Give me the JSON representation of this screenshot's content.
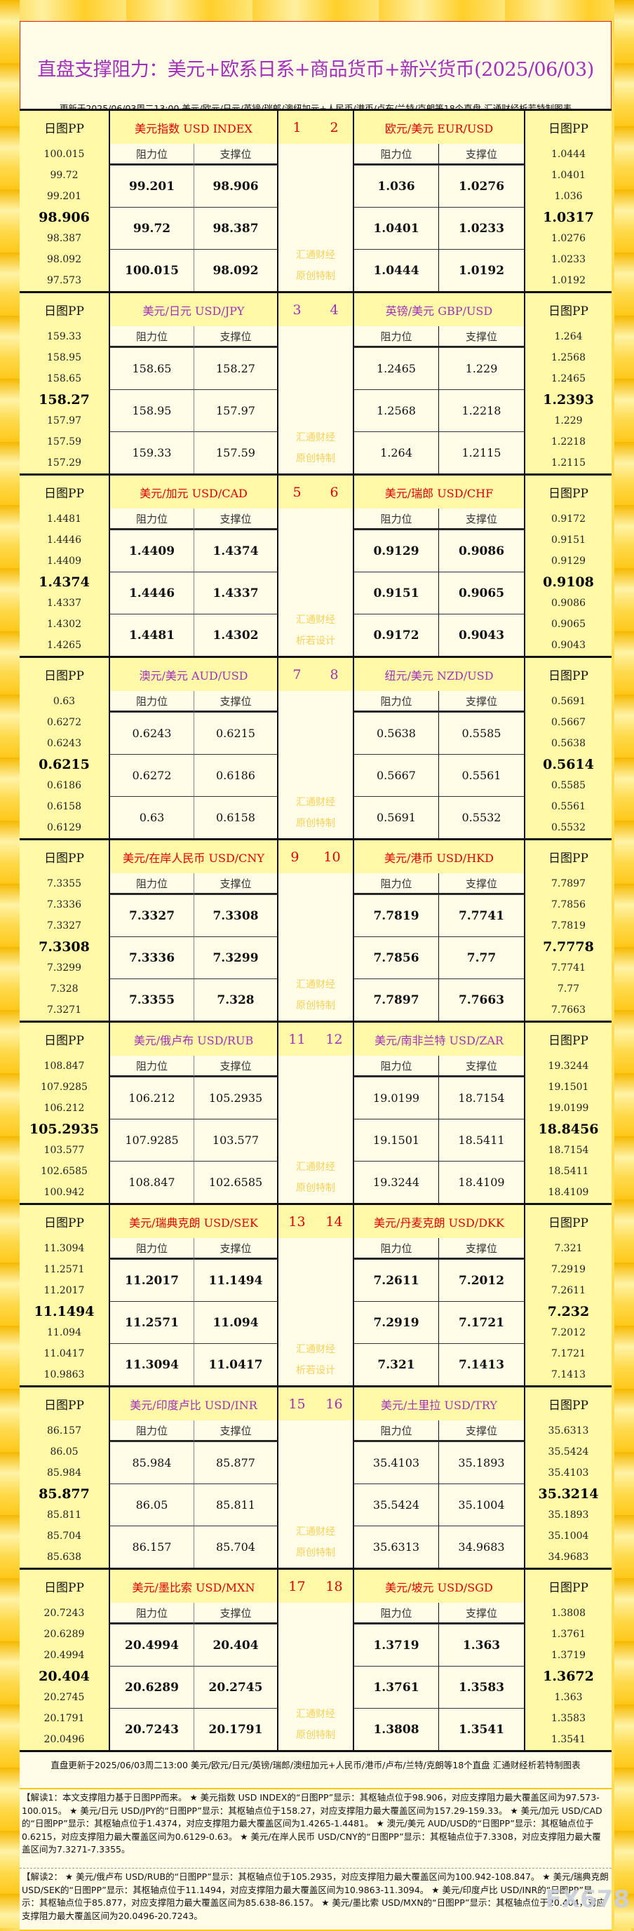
{
  "header": {
    "title": "直盘支撑阻力：美元+欧系日系+商品货币+新兴货币(2025/06/03)",
    "subtitle": "更新于2025/06/03周二13:00 美元/欧元/日元/英镑/瑞郎/澳纽加元+人民币/港币/卢布/兰特/克朗等18个直盘 汇通财经析若特制图表"
  },
  "labels": {
    "pp": "日图PP",
    "resistance": "阻力位",
    "support": "支撑位",
    "wm_line1": "汇通财经"
  },
  "colors": {
    "red_title": "#e00000",
    "purple_title": "#a230bd"
  },
  "sections": [
    {
      "color": "red",
      "wm2": "原创特制",
      "num_left": "1",
      "num_right": "2",
      "left": {
        "title": "美元指数 USD INDEX",
        "pp": [
          "100.015",
          "99.72",
          "99.201",
          "98.906",
          "98.387",
          "98.092",
          "97.573"
        ],
        "rows": [
          [
            "99.201",
            "98.906"
          ],
          [
            "99.72",
            "98.387"
          ],
          [
            "100.015",
            "98.092"
          ]
        ]
      },
      "right": {
        "title": "欧元/美元 EUR/USD",
        "pp": [
          "1.0444",
          "1.0401",
          "1.036",
          "1.0317",
          "1.0276",
          "1.0233",
          "1.0192"
        ],
        "rows": [
          [
            "1.036",
            "1.0276"
          ],
          [
            "1.0401",
            "1.0233"
          ],
          [
            "1.0444",
            "1.0192"
          ]
        ]
      }
    },
    {
      "color": "purple",
      "wm2": "原创特制",
      "num_left": "3",
      "num_right": "4",
      "left": {
        "title": "美元/日元 USD/JPY",
        "pp": [
          "159.33",
          "158.95",
          "158.65",
          "158.27",
          "157.97",
          "157.59",
          "157.29"
        ],
        "rows": [
          [
            "158.65",
            "158.27"
          ],
          [
            "158.95",
            "157.97"
          ],
          [
            "159.33",
            "157.59"
          ]
        ]
      },
      "right": {
        "title": "英镑/美元 GBP/USD",
        "pp": [
          "1.264",
          "1.2568",
          "1.2465",
          "1.2393",
          "1.229",
          "1.2218",
          "1.2115"
        ],
        "rows": [
          [
            "1.2465",
            "1.229"
          ],
          [
            "1.2568",
            "1.2218"
          ],
          [
            "1.264",
            "1.2115"
          ]
        ]
      }
    },
    {
      "color": "red",
      "wm2": "析若设计",
      "num_left": "5",
      "num_right": "6",
      "left": {
        "title": "美元/加元 USD/CAD",
        "pp": [
          "1.4481",
          "1.4446",
          "1.4409",
          "1.4374",
          "1.4337",
          "1.4302",
          "1.4265"
        ],
        "rows": [
          [
            "1.4409",
            "1.4374"
          ],
          [
            "1.4446",
            "1.4337"
          ],
          [
            "1.4481",
            "1.4302"
          ]
        ]
      },
      "right": {
        "title": "美元/瑞郎 USD/CHF",
        "pp": [
          "0.9172",
          "0.9151",
          "0.9129",
          "0.9108",
          "0.9086",
          "0.9065",
          "0.9043"
        ],
        "rows": [
          [
            "0.9129",
            "0.9086"
          ],
          [
            "0.9151",
            "0.9065"
          ],
          [
            "0.9172",
            "0.9043"
          ]
        ]
      }
    },
    {
      "color": "purple",
      "wm2": "原创特制",
      "num_left": "7",
      "num_right": "8",
      "left": {
        "title": "澳元/美元 AUD/USD",
        "pp": [
          "0.63",
          "0.6272",
          "0.6243",
          "0.6215",
          "0.6186",
          "0.6158",
          "0.6129"
        ],
        "rows": [
          [
            "0.6243",
            "0.6215"
          ],
          [
            "0.6272",
            "0.6186"
          ],
          [
            "0.63",
            "0.6158"
          ]
        ]
      },
      "right": {
        "title": "纽元/美元 NZD/USD",
        "pp": [
          "0.5691",
          "0.5667",
          "0.5638",
          "0.5614",
          "0.5585",
          "0.5561",
          "0.5532"
        ],
        "rows": [
          [
            "0.5638",
            "0.5585"
          ],
          [
            "0.5667",
            "0.5561"
          ],
          [
            "0.5691",
            "0.5532"
          ]
        ]
      }
    },
    {
      "color": "red",
      "wm2": "原创特制",
      "num_left": "9",
      "num_right": "10",
      "left": {
        "title": "美元/在岸人民币 USD/CNY",
        "pp": [
          "7.3355",
          "7.3336",
          "7.3327",
          "7.3308",
          "7.3299",
          "7.328",
          "7.3271"
        ],
        "rows": [
          [
            "7.3327",
            "7.3308"
          ],
          [
            "7.3336",
            "7.3299"
          ],
          [
            "7.3355",
            "7.328"
          ]
        ]
      },
      "right": {
        "title": "美元/港币 USD/HKD",
        "pp": [
          "7.7897",
          "7.7856",
          "7.7819",
          "7.7778",
          "7.7741",
          "7.77",
          "7.7663"
        ],
        "rows": [
          [
            "7.7819",
            "7.7741"
          ],
          [
            "7.7856",
            "7.77"
          ],
          [
            "7.7897",
            "7.7663"
          ]
        ]
      }
    },
    {
      "color": "purple",
      "wm2": "原创特制",
      "num_left": "11",
      "num_right": "12",
      "left": {
        "title": "美元/俄卢布 USD/RUB",
        "pp": [
          "108.847",
          "107.9285",
          "106.212",
          "105.2935",
          "103.577",
          "102.6585",
          "100.942"
        ],
        "rows": [
          [
            "106.212",
            "105.2935"
          ],
          [
            "107.9285",
            "103.577"
          ],
          [
            "108.847",
            "102.6585"
          ]
        ]
      },
      "right": {
        "title": "美元/南非兰特 USD/ZAR",
        "pp": [
          "19.3244",
          "19.1501",
          "19.0199",
          "18.8456",
          "18.7154",
          "18.5411",
          "18.4109"
        ],
        "rows": [
          [
            "19.0199",
            "18.7154"
          ],
          [
            "19.1501",
            "18.5411"
          ],
          [
            "19.3244",
            "18.4109"
          ]
        ]
      }
    },
    {
      "color": "red",
      "wm2": "析若设计",
      "num_left": "13",
      "num_right": "14",
      "left": {
        "title": "美元/瑞典克朗 USD/SEK",
        "pp": [
          "11.3094",
          "11.2571",
          "11.2017",
          "11.1494",
          "11.094",
          "11.0417",
          "10.9863"
        ],
        "rows": [
          [
            "11.2017",
            "11.1494"
          ],
          [
            "11.2571",
            "11.094"
          ],
          [
            "11.3094",
            "11.0417"
          ]
        ]
      },
      "right": {
        "title": "美元/丹麦克朗 USD/DKK",
        "pp": [
          "7.321",
          "7.2919",
          "7.2611",
          "7.232",
          "7.2012",
          "7.1721",
          "7.1413"
        ],
        "rows": [
          [
            "7.2611",
            "7.2012"
          ],
          [
            "7.2919",
            "7.1721"
          ],
          [
            "7.321",
            "7.1413"
          ]
        ]
      }
    },
    {
      "color": "purple",
      "wm2": "原创特制",
      "num_left": "15",
      "num_right": "16",
      "left": {
        "title": "美元/印度卢比 USD/INR",
        "pp": [
          "86.157",
          "86.05",
          "85.984",
          "85.877",
          "85.811",
          "85.704",
          "85.638"
        ],
        "rows": [
          [
            "85.984",
            "85.877"
          ],
          [
            "86.05",
            "85.811"
          ],
          [
            "86.157",
            "85.704"
          ]
        ]
      },
      "right": {
        "title": "美元/土里拉 USD/TRY",
        "pp": [
          "35.6313",
          "35.5424",
          "35.4103",
          "35.3214",
          "35.1893",
          "35.1004",
          "34.9683"
        ],
        "rows": [
          [
            "35.4103",
            "35.1893"
          ],
          [
            "35.5424",
            "35.1004"
          ],
          [
            "35.6313",
            "34.9683"
          ]
        ]
      }
    },
    {
      "color": "red",
      "wm2": "原创特制",
      "num_left": "17",
      "num_right": "18",
      "left": {
        "title": "美元/墨比索 USD/MXN",
        "pp": [
          "20.7243",
          "20.6289",
          "20.4994",
          "20.404",
          "20.2745",
          "20.1791",
          "20.0496"
        ],
        "rows": [
          [
            "20.4994",
            "20.404"
          ],
          [
            "20.6289",
            "20.2745"
          ],
          [
            "20.7243",
            "20.1791"
          ]
        ]
      },
      "right": {
        "title": "美元/坡元 USD/SGD",
        "pp": [
          "1.3808",
          "1.3761",
          "1.3719",
          "1.3672",
          "1.363",
          "1.3583",
          "1.3541"
        ],
        "rows": [
          [
            "1.3719",
            "1.363"
          ],
          [
            "1.3761",
            "1.3583"
          ],
          [
            "1.3808",
            "1.3541"
          ]
        ]
      }
    }
  ],
  "footer": {
    "update_note": "直盘更新于2025/06/03周二13:00 美元/欧元/日元/英镑/瑞郎/澳纽加元+人民币/港币/卢布/兰特/克朗等18个直盘 汇通财经析若特制图表",
    "interpretation_1": "【解读1：本文支撑阻力基于日图PP而来。 ★ 美元指数 USD INDEX的“日图PP”显示：其枢轴点位于98.906，对应支撑阻力最大覆盖区间为97.573-100.015。 ★ 美元/日元 USD/JPY的“日图PP”显示：其枢轴点位于158.27，对应支撑阻力最大覆盖区间为157.29-159.33。 ★ 美元/加元 USD/CAD的“日图PP”显示：其枢轴点位于1.4374，对应支撑阻力最大覆盖区间为1.4265-1.4481。 ★ 澳元/美元 AUD/USD的“日图PP”显示：其枢轴点位于0.6215，对应支撑阻力最大覆盖区间为0.6129-0.63。 ★ 美元/在岸人民币 USD/CNY的“日图PP”显示：其枢轴点位于7.3308，对应支撑阻力最大覆盖区间为7.3271-7.3355。",
    "interpretation_2": "【解读2： ★ 美元/俄卢布 USD/RUB的“日图PP”显示：其枢轴点位于105.2935，对应支撑阻力最大覆盖区间为100.942-108.847。 ★ 美元/瑞典克朗 USD/SEK的“日图PP”显示：其枢轴点位于11.1494，对应支撑阻力最大覆盖区间为10.9863-11.3094。 ★ 美元/印度卢比 USD/INR的“日图PP”显示：其枢轴点位于85.877，对应支撑阻力最大覆盖区间为85.638-86.157。 ★ 美元/墨比索 USD/MXN的“日图PP”显示：其枢轴点位于20.404，对应支撑阻力最大覆盖区间为20.0496-20.7243。",
    "watermark": "FX678"
  }
}
